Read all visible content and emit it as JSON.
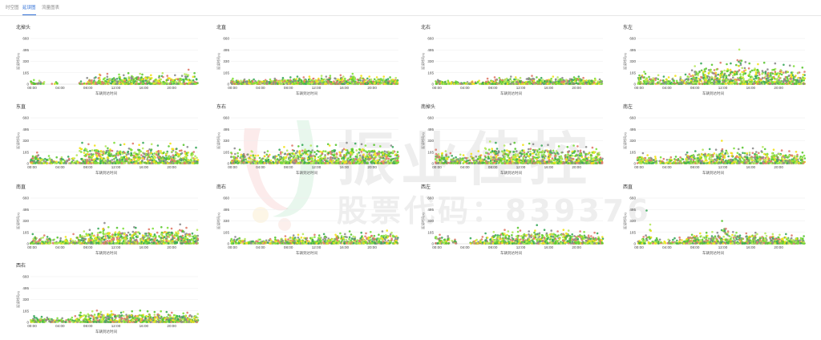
{
  "tabs": [
    {
      "label": "时空图",
      "active": false
    },
    {
      "label": "延误图",
      "active": true
    },
    {
      "label": "流量图表",
      "active": false
    }
  ],
  "watermark": {
    "main": "振业佳控",
    "sub": "股票代码：839376"
  },
  "point_colors": [
    "#7ee03a",
    "#5cc632",
    "#f2e21a",
    "#e07a6a",
    "#8c8c8c",
    "#3aa85a",
    "#b6e85c"
  ],
  "chart_data": [
    {
      "type": "scatter",
      "title": "北掉头",
      "ylabel": "延误时间(s)",
      "xlabel": "车辆到达时间",
      "yticks": [
        0,
        165,
        330,
        495,
        660
      ],
      "xticks": [
        "00:00",
        "04:00",
        "08:00",
        "12:00",
        "16:00",
        "20:00"
      ],
      "ylim": [
        0,
        660
      ],
      "xlim": [
        0,
        24
      ],
      "density": [
        4,
        2,
        0,
        1,
        0,
        0,
        0,
        2,
        4,
        5,
        5,
        6,
        6,
        6,
        6,
        7,
        7,
        6,
        6,
        5,
        5,
        5,
        5,
        4
      ],
      "peak": [
        60,
        50,
        0,
        30,
        0,
        0,
        0,
        40,
        90,
        140,
        130,
        150,
        140,
        130,
        160,
        150,
        140,
        130,
        160,
        120,
        130,
        120,
        210,
        160
      ]
    },
    {
      "type": "scatter",
      "title": "北直",
      "ylabel": "延误时间(s)",
      "xlabel": "车辆到达时间",
      "yticks": [
        0,
        165,
        330,
        495,
        660
      ],
      "xticks": [
        "00:00",
        "04:00",
        "08:00",
        "12:00",
        "16:00",
        "20:00"
      ],
      "ylim": [
        0,
        660
      ],
      "xlim": [
        0,
        24
      ],
      "density": [
        6,
        6,
        6,
        6,
        6,
        6,
        7,
        7,
        7,
        7,
        7,
        7,
        7,
        7,
        7,
        7,
        7,
        7,
        7,
        7,
        7,
        7,
        7,
        7
      ],
      "peak": [
        80,
        70,
        60,
        70,
        60,
        70,
        80,
        90,
        100,
        110,
        100,
        110,
        120,
        110,
        120,
        130,
        110,
        150,
        120,
        110,
        100,
        110,
        100,
        90
      ]
    },
    {
      "type": "scatter",
      "title": "北右",
      "ylabel": "延误时间(s)",
      "xlabel": "车辆到达时间",
      "yticks": [
        0,
        165,
        330,
        495,
        660
      ],
      "xticks": [
        "00:00",
        "04:00",
        "08:00",
        "12:00",
        "16:00",
        "20:00"
      ],
      "ylim": [
        0,
        660
      ],
      "xlim": [
        0,
        24
      ],
      "density": [
        4,
        4,
        3,
        3,
        3,
        3,
        3,
        5,
        6,
        6,
        6,
        6,
        6,
        6,
        6,
        6,
        6,
        6,
        6,
        6,
        6,
        6,
        6,
        5
      ],
      "peak": [
        60,
        50,
        40,
        30,
        30,
        40,
        50,
        80,
        100,
        90,
        110,
        100,
        90,
        120,
        100,
        90,
        110,
        100,
        90,
        100,
        110,
        90,
        80,
        70
      ]
    },
    {
      "type": "scatter",
      "title": "东左",
      "ylabel": "延误时间(s)",
      "xlabel": "车辆到达时间",
      "yticks": [
        0,
        165,
        330,
        495,
        660
      ],
      "xticks": [
        "00:00",
        "04:00",
        "08:00",
        "12:00",
        "16:00",
        "20:00"
      ],
      "ylim": [
        0,
        660
      ],
      "xlim": [
        0,
        24
      ],
      "density": [
        6,
        5,
        4,
        3,
        3,
        4,
        5,
        7,
        8,
        8,
        8,
        8,
        8,
        8,
        8,
        8,
        8,
        8,
        8,
        8,
        8,
        8,
        8,
        7
      ],
      "peak": [
        180,
        150,
        130,
        110,
        100,
        120,
        140,
        200,
        260,
        300,
        280,
        310,
        290,
        300,
        500,
        320,
        300,
        290,
        310,
        300,
        280,
        270,
        260,
        240
      ]
    },
    {
      "type": "scatter",
      "title": "东直",
      "ylabel": "延误时间(s)",
      "xlabel": "车辆到达时间",
      "yticks": [
        0,
        165,
        330,
        495,
        660
      ],
      "xticks": [
        "00:00",
        "04:00",
        "08:00",
        "12:00",
        "16:00",
        "20:00"
      ],
      "ylim": [
        0,
        660
      ],
      "xlim": [
        0,
        24
      ],
      "density": [
        6,
        5,
        4,
        3,
        3,
        3,
        4,
        7,
        8,
        8,
        8,
        8,
        8,
        8,
        8,
        8,
        8,
        8,
        8,
        8,
        8,
        8,
        8,
        7
      ],
      "peak": [
        160,
        120,
        110,
        90,
        90,
        100,
        120,
        300,
        280,
        260,
        250,
        300,
        270,
        280,
        290,
        270,
        300,
        280,
        260,
        250,
        290,
        270,
        240,
        230
      ]
    },
    {
      "type": "scatter",
      "title": "东右",
      "ylabel": "延误时间(s)",
      "xlabel": "车辆到达时间",
      "yticks": [
        0,
        165,
        330,
        495,
        660
      ],
      "xticks": [
        "00:00",
        "04:00",
        "08:00",
        "12:00",
        "16:00",
        "20:00"
      ],
      "ylim": [
        0,
        660
      ],
      "xlim": [
        0,
        24
      ],
      "density": [
        7,
        6,
        5,
        4,
        4,
        5,
        6,
        7,
        8,
        8,
        8,
        8,
        8,
        8,
        8,
        8,
        8,
        8,
        8,
        8,
        8,
        8,
        8,
        8
      ],
      "peak": [
        220,
        200,
        180,
        170,
        160,
        180,
        200,
        240,
        260,
        250,
        270,
        260,
        250,
        280,
        260,
        270,
        300,
        290,
        280,
        260,
        270,
        250,
        260,
        240
      ]
    },
    {
      "type": "scatter",
      "title": "南掉头",
      "ylabel": "延误时间(s)",
      "xlabel": "车辆到达时间",
      "yticks": [
        0,
        165,
        330,
        495,
        660
      ],
      "xticks": [
        "00:00",
        "04:00",
        "08:00",
        "12:00",
        "16:00",
        "20:00"
      ],
      "ylim": [
        0,
        660
      ],
      "xlim": [
        0,
        24
      ],
      "density": [
        7,
        6,
        5,
        4,
        4,
        5,
        6,
        7,
        8,
        8,
        8,
        8,
        8,
        8,
        8,
        8,
        8,
        8,
        8,
        8,
        8,
        8,
        8,
        7
      ],
      "peak": [
        200,
        180,
        150,
        130,
        120,
        140,
        180,
        320,
        300,
        260,
        280,
        300,
        270,
        290,
        280,
        260,
        270,
        250,
        240,
        260,
        250,
        240,
        230,
        210
      ]
    },
    {
      "type": "scatter",
      "title": "南左",
      "ylabel": "延误时间(s)",
      "xlabel": "车辆到达时间",
      "yticks": [
        0,
        165,
        330,
        495,
        660
      ],
      "xticks": [
        "00:00",
        "04:00",
        "08:00",
        "12:00",
        "16:00",
        "20:00"
      ],
      "ylim": [
        0,
        660
      ],
      "xlim": [
        0,
        24
      ],
      "density": [
        6,
        5,
        4,
        3,
        3,
        4,
        5,
        7,
        7,
        7,
        7,
        7,
        7,
        7,
        7,
        7,
        7,
        7,
        7,
        7,
        7,
        7,
        7,
        6
      ],
      "peak": [
        150,
        120,
        100,
        90,
        90,
        100,
        130,
        160,
        180,
        200,
        210,
        200,
        330,
        220,
        210,
        230,
        220,
        240,
        210,
        200,
        190,
        180,
        170,
        160
      ]
    },
    {
      "type": "scatter",
      "title": "南直",
      "ylabel": "延误时间(s)",
      "xlabel": "车辆到达时间",
      "yticks": [
        0,
        165,
        330,
        495,
        660
      ],
      "xticks": [
        "00:00",
        "04:00",
        "08:00",
        "12:00",
        "16:00",
        "20:00"
      ],
      "ylim": [
        0,
        660
      ],
      "xlim": [
        0,
        24
      ],
      "density": [
        6,
        5,
        4,
        3,
        3,
        4,
        5,
        7,
        8,
        8,
        8,
        8,
        8,
        8,
        8,
        8,
        8,
        8,
        8,
        8,
        8,
        8,
        8,
        7
      ],
      "peak": [
        140,
        120,
        100,
        90,
        80,
        100,
        140,
        180,
        200,
        220,
        300,
        240,
        230,
        220,
        240,
        230,
        210,
        220,
        240,
        230,
        220,
        280,
        230,
        200
      ]
    },
    {
      "type": "scatter",
      "title": "南右",
      "ylabel": "延误时间(s)",
      "xlabel": "车辆到达时间",
      "yticks": [
        0,
        165,
        330,
        495,
        660
      ],
      "xticks": [
        "00:00",
        "04:00",
        "08:00",
        "12:00",
        "16:00",
        "20:00"
      ],
      "ylim": [
        0,
        660
      ],
      "xlim": [
        0,
        24
      ],
      "density": [
        5,
        4,
        3,
        3,
        3,
        3,
        4,
        5,
        6,
        6,
        6,
        6,
        6,
        6,
        6,
        6,
        6,
        6,
        6,
        6,
        6,
        6,
        6,
        5
      ],
      "peak": [
        100,
        80,
        70,
        60,
        60,
        70,
        90,
        110,
        120,
        130,
        140,
        130,
        120,
        140,
        130,
        150,
        140,
        180,
        160,
        150,
        170,
        180,
        190,
        160
      ]
    },
    {
      "type": "scatter",
      "title": "西左",
      "ylabel": "延误时间(s)",
      "xlabel": "车辆到达时间",
      "yticks": [
        0,
        165,
        330,
        495,
        660
      ],
      "xticks": [
        "00:00",
        "04:00",
        "08:00",
        "12:00",
        "16:00",
        "20:00"
      ],
      "ylim": [
        0,
        660
      ],
      "xlim": [
        0,
        24
      ],
      "density": [
        6,
        5,
        2,
        0,
        0,
        3,
        4,
        6,
        7,
        7,
        7,
        7,
        7,
        7,
        7,
        7,
        7,
        7,
        7,
        7,
        7,
        7,
        7,
        6
      ],
      "peak": [
        130,
        110,
        60,
        0,
        0,
        80,
        100,
        150,
        170,
        200,
        180,
        230,
        190,
        180,
        270,
        200,
        190,
        180,
        200,
        190,
        180,
        170,
        160,
        150
      ]
    },
    {
      "type": "scatter",
      "title": "西直",
      "ylabel": "延误时间(s)",
      "xlabel": "车辆到达时间",
      "yticks": [
        0,
        165,
        330,
        495,
        660
      ],
      "xticks": [
        "00:00",
        "04:00",
        "08:00",
        "12:00",
        "16:00",
        "20:00"
      ],
      "ylim": [
        0,
        660
      ],
      "xlim": [
        0,
        24
      ],
      "density": [
        5,
        4,
        3,
        2,
        2,
        3,
        4,
        6,
        7,
        7,
        7,
        7,
        7,
        7,
        7,
        7,
        7,
        7,
        7,
        7,
        7,
        7,
        7,
        6
      ],
      "peak": [
        100,
        480,
        80,
        60,
        60,
        80,
        90,
        130,
        150,
        160,
        170,
        160,
        330,
        170,
        160,
        150,
        160,
        140,
        150,
        140,
        130,
        140,
        120,
        110
      ]
    },
    {
      "type": "scatter",
      "title": "西右",
      "ylabel": "延误时间(s)",
      "xlabel": "车辆到达时间",
      "yticks": [
        0,
        165,
        330,
        495,
        660
      ],
      "xticks": [
        "00:00",
        "04:00",
        "08:00",
        "12:00",
        "16:00",
        "20:00"
      ],
      "ylim": [
        0,
        660
      ],
      "xlim": [
        0,
        24
      ],
      "density": [
        5,
        4,
        3,
        3,
        2,
        3,
        4,
        6,
        7,
        7,
        7,
        7,
        7,
        7,
        7,
        7,
        7,
        7,
        7,
        7,
        7,
        7,
        7,
        6
      ],
      "peak": [
        90,
        80,
        70,
        60,
        60,
        70,
        90,
        140,
        160,
        170,
        150,
        160,
        140,
        150,
        160,
        170,
        160,
        150,
        160,
        150,
        140,
        130,
        140,
        120
      ]
    }
  ]
}
